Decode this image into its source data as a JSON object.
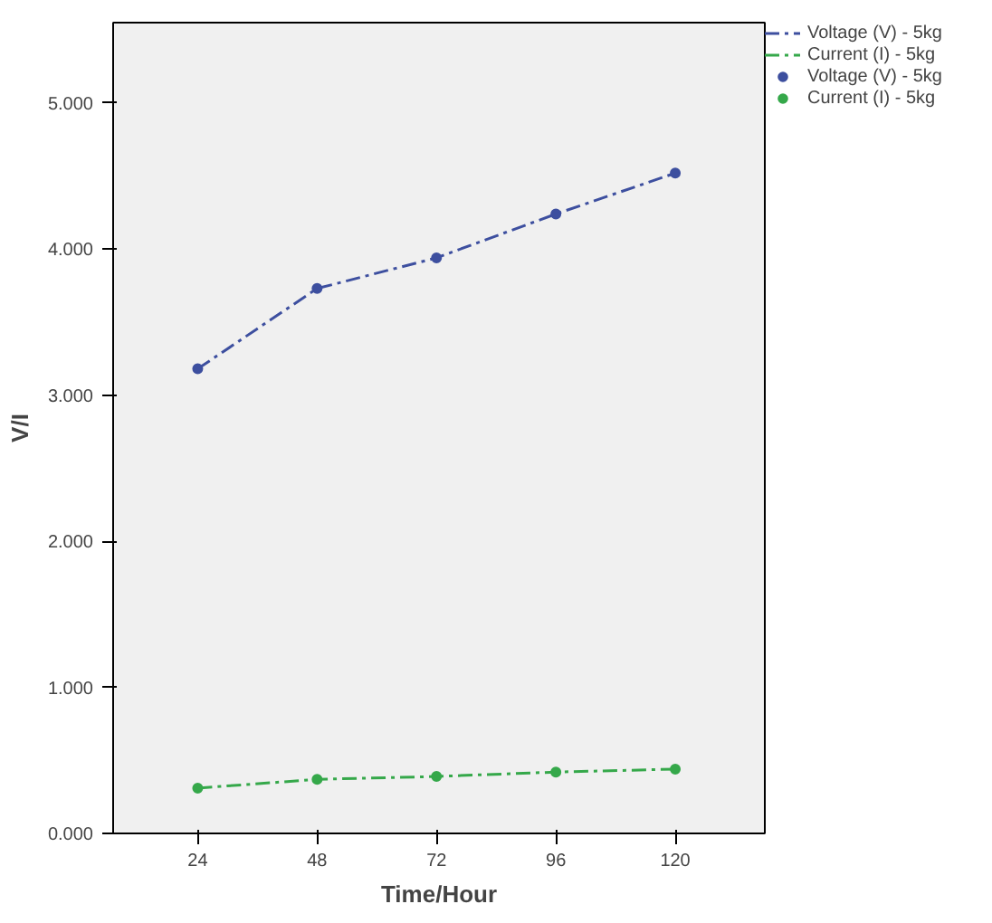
{
  "chart_data": {
    "type": "line",
    "xlabel": "Time/Hour",
    "ylabel": "V/I",
    "x": [
      24,
      48,
      72,
      96,
      120
    ],
    "xlim": [
      7,
      138
    ],
    "xticks": [
      24,
      48,
      72,
      96,
      120
    ],
    "ylim": [
      0,
      5.55
    ],
    "yticks": [
      {
        "value": 0,
        "label": "0.000"
      },
      {
        "value": 1,
        "label": "1.000"
      },
      {
        "value": 2,
        "label": "2.000"
      },
      {
        "value": 3,
        "label": "3.000"
      },
      {
        "value": 4,
        "label": "4.000"
      },
      {
        "value": 5,
        "label": "5.000"
      }
    ],
    "series": [
      {
        "name": "Voltage (V) - 5kg",
        "color": "#3d4f9f",
        "values": [
          3.18,
          3.73,
          3.94,
          4.24,
          4.52
        ]
      },
      {
        "name": "Current (I) - 5kg",
        "color": "#35a84a",
        "values": [
          0.31,
          0.37,
          0.39,
          0.42,
          0.44
        ]
      }
    ],
    "marker": "circle",
    "line_style": "dashed",
    "grid": false,
    "legend": "top right"
  }
}
